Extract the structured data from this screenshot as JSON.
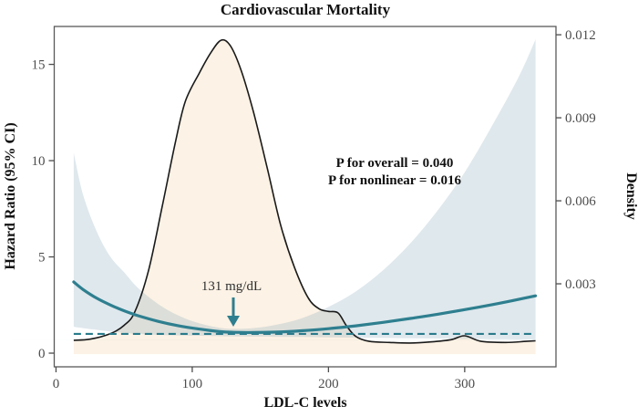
{
  "title": "Cardiovascular Mortality",
  "axes": {
    "x_label": "LDL-C levels",
    "y_left_label": "Hazard Ratio (95% CI)",
    "y_right_label": "Density",
    "x_ticks": [
      0,
      100,
      200,
      300
    ],
    "y_left_ticks": [
      0,
      5,
      10,
      15
    ],
    "y_right_ticks": [
      0.003,
      0.006,
      0.009,
      0.012
    ]
  },
  "annotations": {
    "p_overall": "P for overall = 0.040",
    "p_nonlinear": "P for nonlinear = 0.016",
    "min_point_label": "131 mg/dL",
    "min_point_x": 131,
    "arrow_icon": "down-arrow"
  },
  "colors": {
    "hr_line": "#2e7f8f",
    "reference_line": "#2a7b8c",
    "ci_band_rgba": "rgba(120,160,178,0.24)",
    "density_fill": "#fcf2e5",
    "density_line": "#1a1a1a",
    "panel_border": "#595959",
    "tick_mark": "#4d4d4d",
    "tick_label": "#4d4d4d",
    "text": "#111111",
    "arrow": "#2e7f8f"
  },
  "chart_data": {
    "type": "line",
    "title": "Cardiovascular Mortality",
    "xlabel": "LDL-C levels",
    "ylabel_left": "Hazard Ratio (95% CI)",
    "ylabel_right": "Density",
    "xlim": [
      -1.3,
      367
    ],
    "ylim_left": [
      -0.71,
      16.97
    ],
    "ylim_right": [
      0,
      0.0123
    ],
    "grid": false,
    "legend": "none",
    "reference_line_hr": 1.0,
    "density_fill_baseline": 0.00046,
    "hr_curve": {
      "x": [
        13,
        20,
        30,
        40,
        50,
        60,
        75,
        90,
        105,
        120,
        131,
        145,
        160,
        180,
        200,
        220,
        240,
        260,
        280,
        300,
        320,
        340,
        352
      ],
      "hr": [
        3.7,
        3.3,
        2.85,
        2.5,
        2.2,
        1.95,
        1.65,
        1.42,
        1.25,
        1.12,
        1.08,
        1.07,
        1.09,
        1.16,
        1.27,
        1.42,
        1.6,
        1.8,
        2.02,
        2.26,
        2.52,
        2.8,
        2.98
      ],
      "ci_upper": [
        10.4,
        8.2,
        6.3,
        5.0,
        4.2,
        3.4,
        2.55,
        1.95,
        1.55,
        1.32,
        1.26,
        1.3,
        1.45,
        1.8,
        2.4,
        3.2,
        4.3,
        5.7,
        7.4,
        9.4,
        11.8,
        14.4,
        16.3
      ],
      "ci_lower": [
        1.37,
        1.3,
        1.21,
        1.12,
        1.05,
        1.0,
        0.95,
        0.92,
        0.9,
        0.88,
        0.87,
        0.86,
        0.85,
        0.84,
        0.82,
        0.8,
        0.79,
        0.77,
        0.76,
        0.74,
        0.72,
        0.71,
        0.7
      ]
    },
    "density_curve": {
      "x": [
        13,
        25,
        40,
        50,
        58,
        68,
        78,
        88,
        95,
        105,
        113,
        121,
        128,
        136,
        145,
        155,
        165,
        175,
        185,
        193,
        200,
        207,
        213,
        220,
        230,
        245,
        260,
        275,
        290,
        300,
        312,
        330,
        345,
        352
      ],
      "density": [
        0.00096,
        0.001,
        0.0012,
        0.0015,
        0.002,
        0.0035,
        0.0058,
        0.0082,
        0.0096,
        0.0106,
        0.0113,
        0.0118,
        0.0116,
        0.0107,
        0.0092,
        0.0072,
        0.0051,
        0.0036,
        0.0025,
        0.0021,
        0.002,
        0.00195,
        0.0015,
        0.0011,
        0.00092,
        0.00088,
        0.00086,
        0.0009,
        0.00098,
        0.00112,
        0.00092,
        0.00088,
        0.00092,
        0.00094
      ]
    }
  }
}
